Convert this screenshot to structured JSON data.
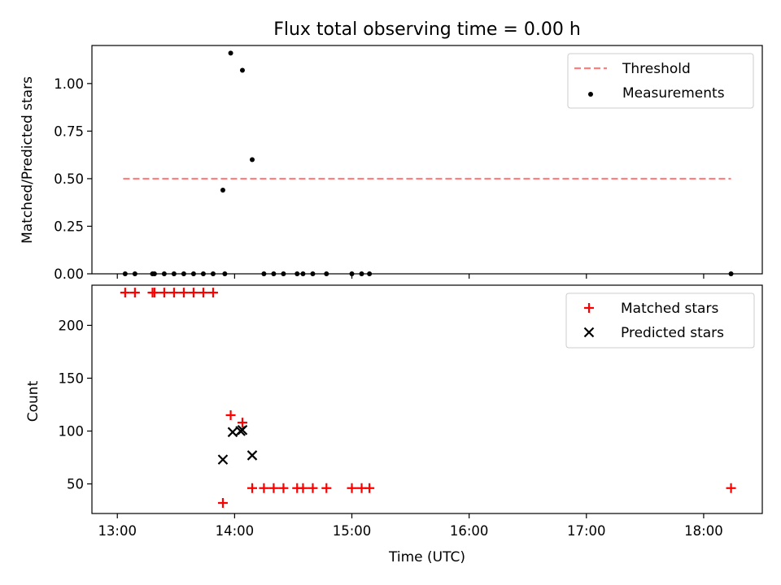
{
  "chart_data": [
    {
      "type": "scatter",
      "title": "Flux total observing time = 0.00 h",
      "xlabel": "",
      "ylabel": "Matched/Predicted stars",
      "xlim": [
        "12:47",
        "18:30"
      ],
      "ylim": [
        0.0,
        1.2
      ],
      "yticks": [
        0.0,
        0.25,
        0.5,
        0.75,
        1.0
      ],
      "ytick_labels": [
        "0.00",
        "0.25",
        "0.50",
        "0.75",
        "1.00"
      ],
      "legend_position": "top-right",
      "series": [
        {
          "name": "Threshold",
          "style": "dashed-line",
          "color": "#ff7f7f",
          "x": [
            "13:03",
            "18:14"
          ],
          "y": [
            0.5,
            0.5
          ]
        },
        {
          "name": "Measurements",
          "style": "dot",
          "color": "#000000",
          "x": [
            "13:04",
            "13:09",
            "13:18",
            "13:19",
            "13:24",
            "13:29",
            "13:34",
            "13:39",
            "13:44",
            "13:49",
            "13:55",
            "13:54",
            "13:58",
            "14:04",
            "14:09",
            "14:15",
            "14:20",
            "14:25",
            "14:32",
            "14:35",
            "14:40",
            "14:47",
            "15:00",
            "15:05",
            "15:09",
            "18:14"
          ],
          "y": [
            0,
            0,
            0,
            0,
            0,
            0,
            0,
            0,
            0,
            0,
            0,
            0.44,
            1.16,
            1.07,
            0.6,
            0,
            0,
            0,
            0,
            0,
            0,
            0,
            0,
            0,
            0,
            0
          ]
        }
      ]
    },
    {
      "type": "scatter",
      "title": "",
      "xlabel": "Time (UTC)",
      "ylabel": "Count",
      "xlim": [
        "12:47",
        "18:30"
      ],
      "ylim": [
        22,
        238
      ],
      "xticks": [
        "13:00",
        "14:00",
        "15:00",
        "16:00",
        "17:00",
        "18:00"
      ],
      "yticks": [
        50,
        100,
        150,
        200
      ],
      "ytick_labels": [
        "50",
        "100",
        "150",
        "200"
      ],
      "legend_position": "top-right",
      "series": [
        {
          "name": "Matched stars",
          "style": "plus",
          "color": "#ff0000",
          "x": [
            "13:04",
            "13:09",
            "13:18",
            "13:19",
            "13:24",
            "13:29",
            "13:34",
            "13:39",
            "13:44",
            "13:49",
            "13:54",
            "13:58",
            "14:04",
            "14:09",
            "14:15",
            "14:20",
            "14:25",
            "14:32",
            "14:35",
            "14:40",
            "14:47",
            "15:00",
            "15:05",
            "15:09",
            "18:14"
          ],
          "y": [
            231,
            231,
            231,
            231,
            231,
            231,
            231,
            231,
            231,
            231,
            32,
            115,
            108,
            46,
            46,
            46,
            46,
            46,
            46,
            46,
            46,
            46,
            46,
            46,
            46
          ]
        },
        {
          "name": "Predicted stars",
          "style": "x",
          "color": "#000000",
          "x": [
            "13:54",
            "13:59",
            "14:03",
            "14:04",
            "14:09"
          ],
          "y": [
            73,
            99,
            100,
            101,
            77
          ]
        }
      ]
    }
  ]
}
